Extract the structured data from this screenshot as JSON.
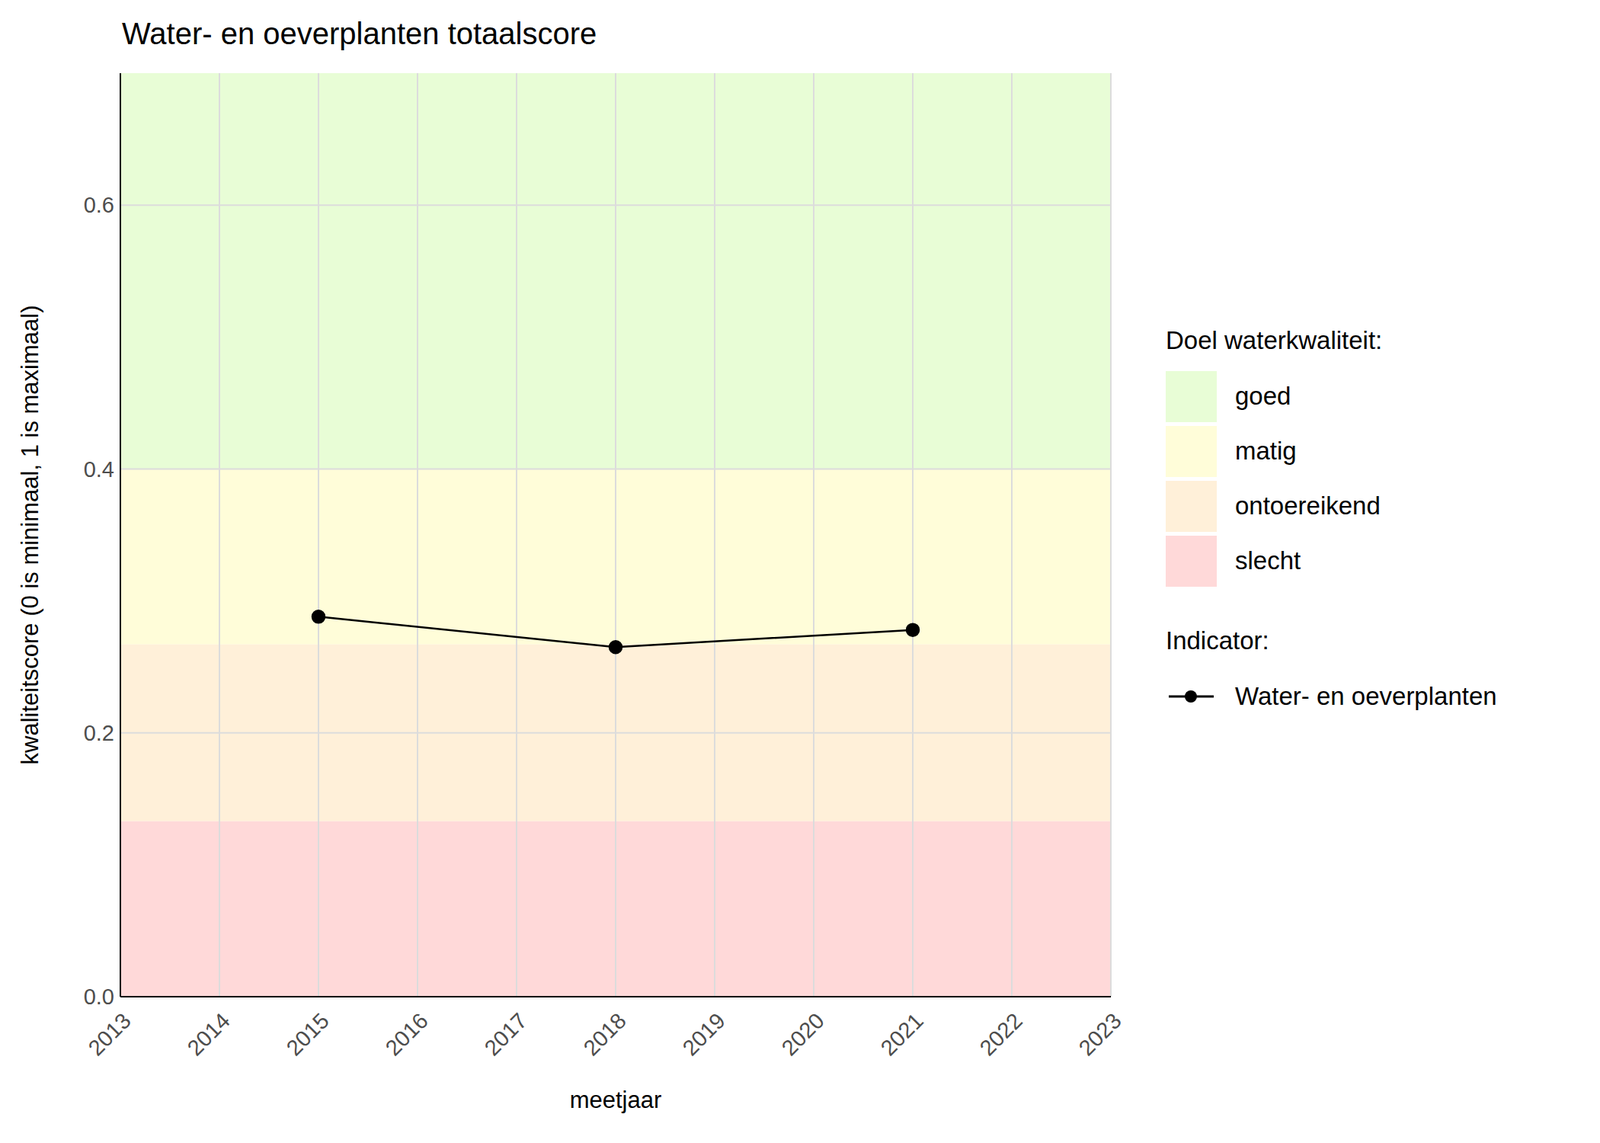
{
  "chart_data": {
    "type": "line",
    "title": "Water- en oeverplanten totaalscore",
    "x_label": "meetjaar",
    "y_label": "kwaliteitscore (0 is minimaal, 1 is maximaal)",
    "x": [
      2015,
      2018,
      2021
    ],
    "series": [
      {
        "name": "Water- en oeverplanten",
        "color": "#000000",
        "values": [
          0.288,
          0.265,
          0.278
        ],
        "marker": "circle",
        "line_style": "solid"
      }
    ],
    "xlim": [
      2013,
      2023
    ],
    "xticks": [
      2013,
      2014,
      2015,
      2016,
      2017,
      2018,
      2019,
      2020,
      2021,
      2022,
      2023
    ],
    "ylim": [
      0,
      0.7
    ],
    "yticks": [
      {
        "value": 0,
        "label": "0.0"
      },
      0.2,
      0.4,
      0.6
    ],
    "grid": true,
    "legend": "right",
    "legend_title": "Indicator:",
    "bands_title": "Doel waterkwaliteit:",
    "bands": [
      {
        "name": "goed",
        "from": 0.4,
        "to": 0.7,
        "color": "#e8fdd6"
      },
      {
        "name": "matig",
        "from": 0.267,
        "to": 0.4,
        "color": "#fffdd9"
      },
      {
        "name": "ontoereikend",
        "from": 0.133,
        "to": 0.267,
        "color": "#fff0d9"
      },
      {
        "name": "slecht",
        "from": 0,
        "to": 0.133,
        "color": "#ffd9d9"
      }
    ]
  }
}
